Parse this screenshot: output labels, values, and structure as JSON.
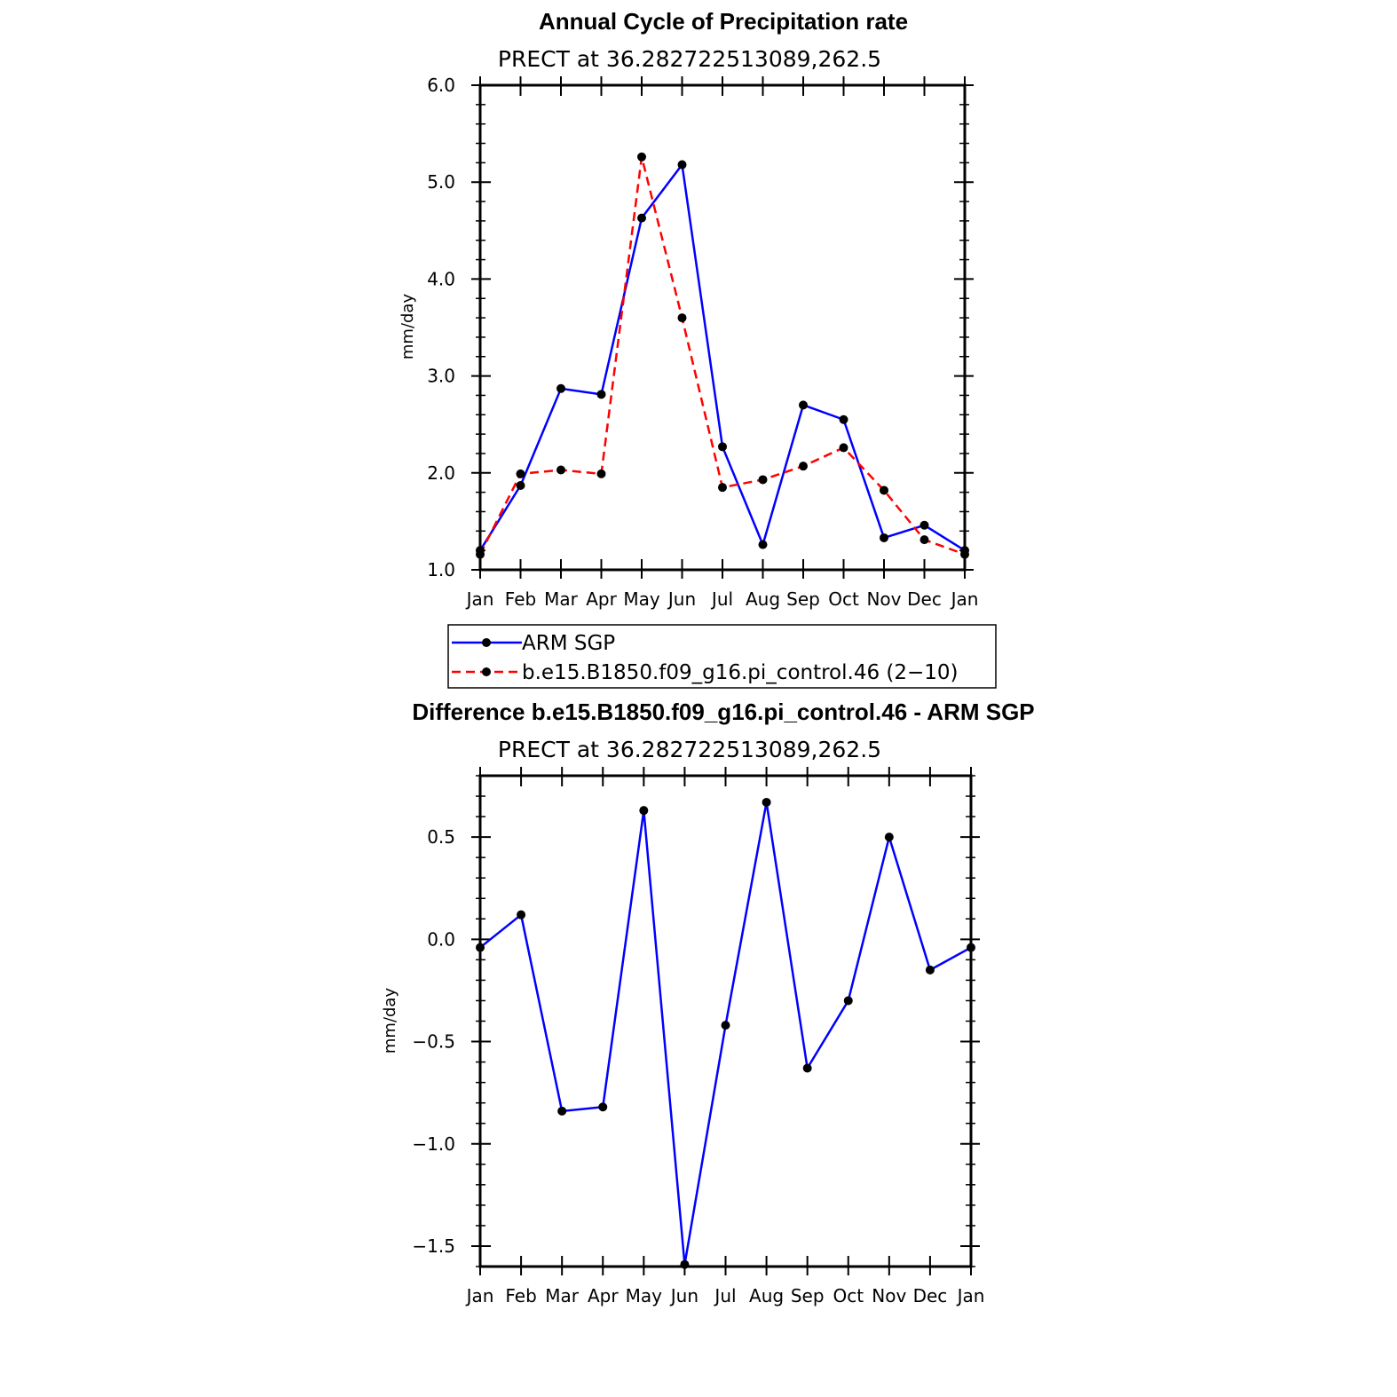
{
  "chart_data": [
    {
      "type": "line",
      "title": "Annual Cycle of Precipitation rate",
      "subtitle": "PRECT at 36.282722513089,262.5",
      "xlabel": "",
      "ylabel": "mm/day",
      "categories": [
        "Jan",
        "Feb",
        "Mar",
        "Apr",
        "May",
        "Jun",
        "Jul",
        "Aug",
        "Sep",
        "Oct",
        "Nov",
        "Dec",
        "Jan"
      ],
      "ylim": [
        1.0,
        6.0
      ],
      "yticks": [
        "1.0",
        "2.0",
        "3.0",
        "4.0",
        "5.0",
        "6.0"
      ],
      "ytick_values": [
        1.0,
        2.0,
        3.0,
        4.0,
        5.0,
        6.0
      ],
      "series": [
        {
          "name": "ARM SGP",
          "color": "#0000ff",
          "dash": "solid",
          "values": [
            1.2,
            1.87,
            2.87,
            2.81,
            4.63,
            5.18,
            2.27,
            1.26,
            2.7,
            2.55,
            1.33,
            1.46,
            1.2
          ]
        },
        {
          "name": "b.e15.B1850.f09_g16.pi_control.46 (2−10)",
          "color": "#ff0000",
          "dash": "dashed",
          "values": [
            1.16,
            1.99,
            2.03,
            1.99,
            5.26,
            3.6,
            1.85,
            1.93,
            2.07,
            2.26,
            1.82,
            1.31,
            1.16
          ]
        }
      ],
      "legend_position": "below"
    },
    {
      "type": "line",
      "title": "Difference b.e15.B1850.f09_g16.pi_control.46 - ARM SGP",
      "subtitle": "PRECT at 36.282722513089,262.5",
      "xlabel": "",
      "ylabel": "mm/day",
      "categories": [
        "Jan",
        "Feb",
        "Mar",
        "Apr",
        "May",
        "Jun",
        "Jul",
        "Aug",
        "Sep",
        "Oct",
        "Nov",
        "Dec",
        "Jan"
      ],
      "ylim": [
        -1.6,
        0.8
      ],
      "yticks": [
        "−1.5",
        "−1.0",
        "−0.5",
        "0.0",
        "0.5"
      ],
      "ytick_values": [
        -1.5,
        -1.0,
        -0.5,
        0.0,
        0.5
      ],
      "series": [
        {
          "color": "#0000ff",
          "dash": "solid",
          "values": [
            -0.04,
            0.12,
            -0.84,
            -0.82,
            0.63,
            -1.59,
            -0.42,
            0.67,
            -0.63,
            -0.3,
            0.5,
            -0.15,
            -0.04
          ]
        }
      ]
    }
  ]
}
